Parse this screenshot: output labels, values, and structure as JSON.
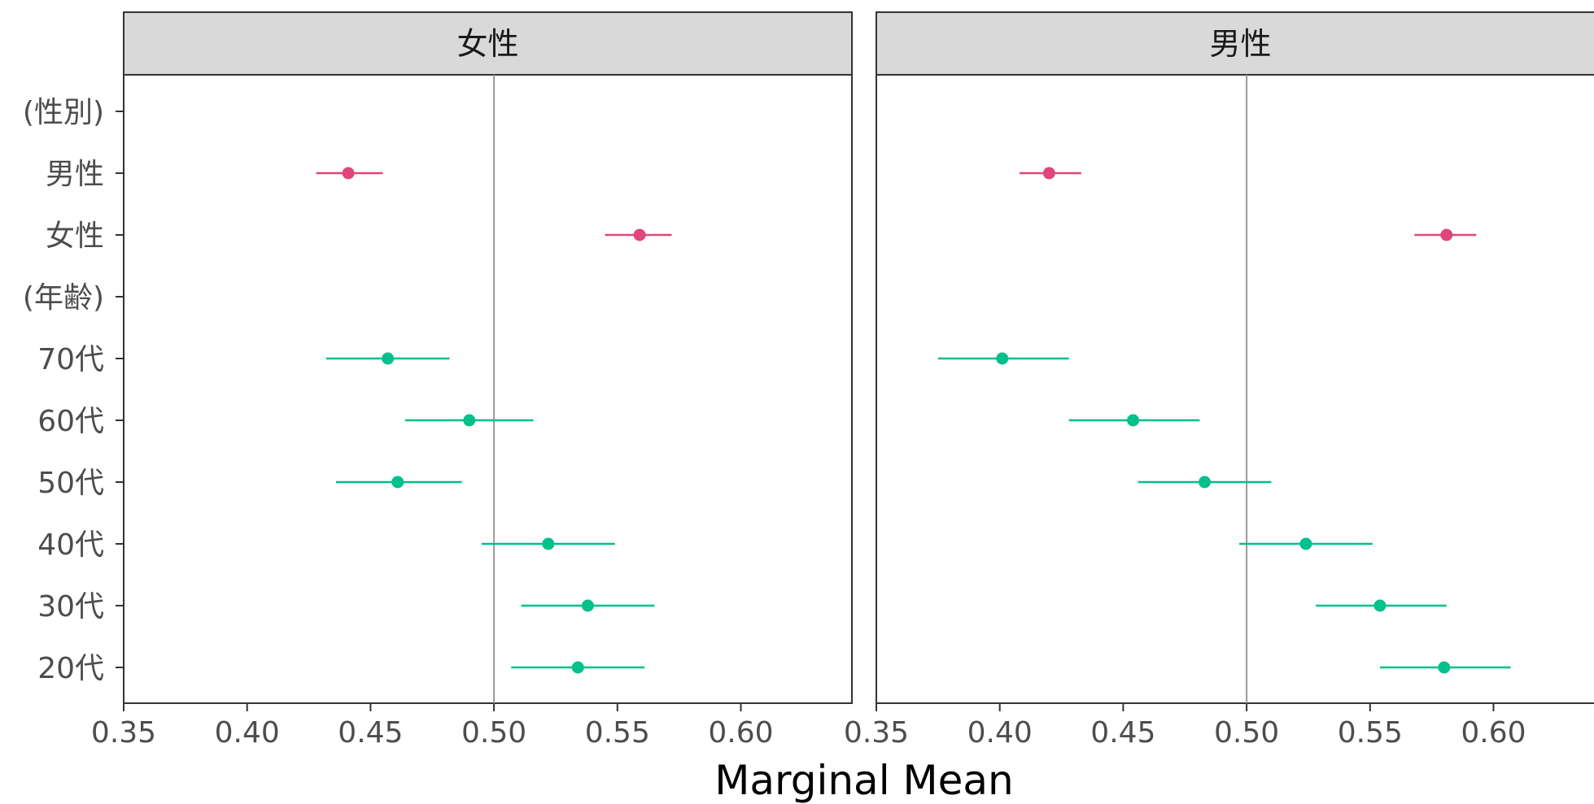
{
  "chart_data": {
    "type": "scatter",
    "subtype": "forest-plot",
    "xlabel": "Marginal Mean",
    "ylabel": "",
    "xlim": [
      0.35,
      0.645
    ],
    "x_ticks": [
      "0.35",
      "0.40",
      "0.45",
      "0.50",
      "0.55",
      "0.60"
    ],
    "reference_line": 0.5,
    "categories": [
      "(性別)",
      "男性",
      "女性",
      "(年齢)",
      "70代",
      "60代",
      "50代",
      "40代",
      "30代",
      "20代"
    ],
    "colors": {
      "gender": "#e0457b",
      "age": "#00c08b",
      "strip": "#d9d9d9",
      "frame": "#333333",
      "refline": "#9a9a9a"
    },
    "panels": [
      {
        "strip_label": "女性",
        "points": [
          {
            "label": "男性",
            "group": "gender",
            "mean": 0.441,
            "lower": 0.428,
            "upper": 0.455
          },
          {
            "label": "女性",
            "group": "gender",
            "mean": 0.559,
            "lower": 0.545,
            "upper": 0.572
          },
          {
            "label": "70代",
            "group": "age",
            "mean": 0.457,
            "lower": 0.432,
            "upper": 0.482
          },
          {
            "label": "60代",
            "group": "age",
            "mean": 0.49,
            "lower": 0.464,
            "upper": 0.516
          },
          {
            "label": "50代",
            "group": "age",
            "mean": 0.461,
            "lower": 0.436,
            "upper": 0.487
          },
          {
            "label": "40代",
            "group": "age",
            "mean": 0.522,
            "lower": 0.495,
            "upper": 0.549
          },
          {
            "label": "30代",
            "group": "age",
            "mean": 0.538,
            "lower": 0.511,
            "upper": 0.565
          },
          {
            "label": "20代",
            "group": "age",
            "mean": 0.534,
            "lower": 0.507,
            "upper": 0.561
          }
        ]
      },
      {
        "strip_label": "男性",
        "points": [
          {
            "label": "男性",
            "group": "gender",
            "mean": 0.42,
            "lower": 0.408,
            "upper": 0.433
          },
          {
            "label": "女性",
            "group": "gender",
            "mean": 0.581,
            "lower": 0.568,
            "upper": 0.593
          },
          {
            "label": "70代",
            "group": "age",
            "mean": 0.401,
            "lower": 0.375,
            "upper": 0.428
          },
          {
            "label": "60代",
            "group": "age",
            "mean": 0.454,
            "lower": 0.428,
            "upper": 0.481
          },
          {
            "label": "50代",
            "group": "age",
            "mean": 0.483,
            "lower": 0.456,
            "upper": 0.51
          },
          {
            "label": "40代",
            "group": "age",
            "mean": 0.524,
            "lower": 0.497,
            "upper": 0.551
          },
          {
            "label": "30代",
            "group": "age",
            "mean": 0.554,
            "lower": 0.528,
            "upper": 0.581
          },
          {
            "label": "20代",
            "group": "age",
            "mean": 0.58,
            "lower": 0.554,
            "upper": 0.607
          }
        ]
      }
    ]
  }
}
